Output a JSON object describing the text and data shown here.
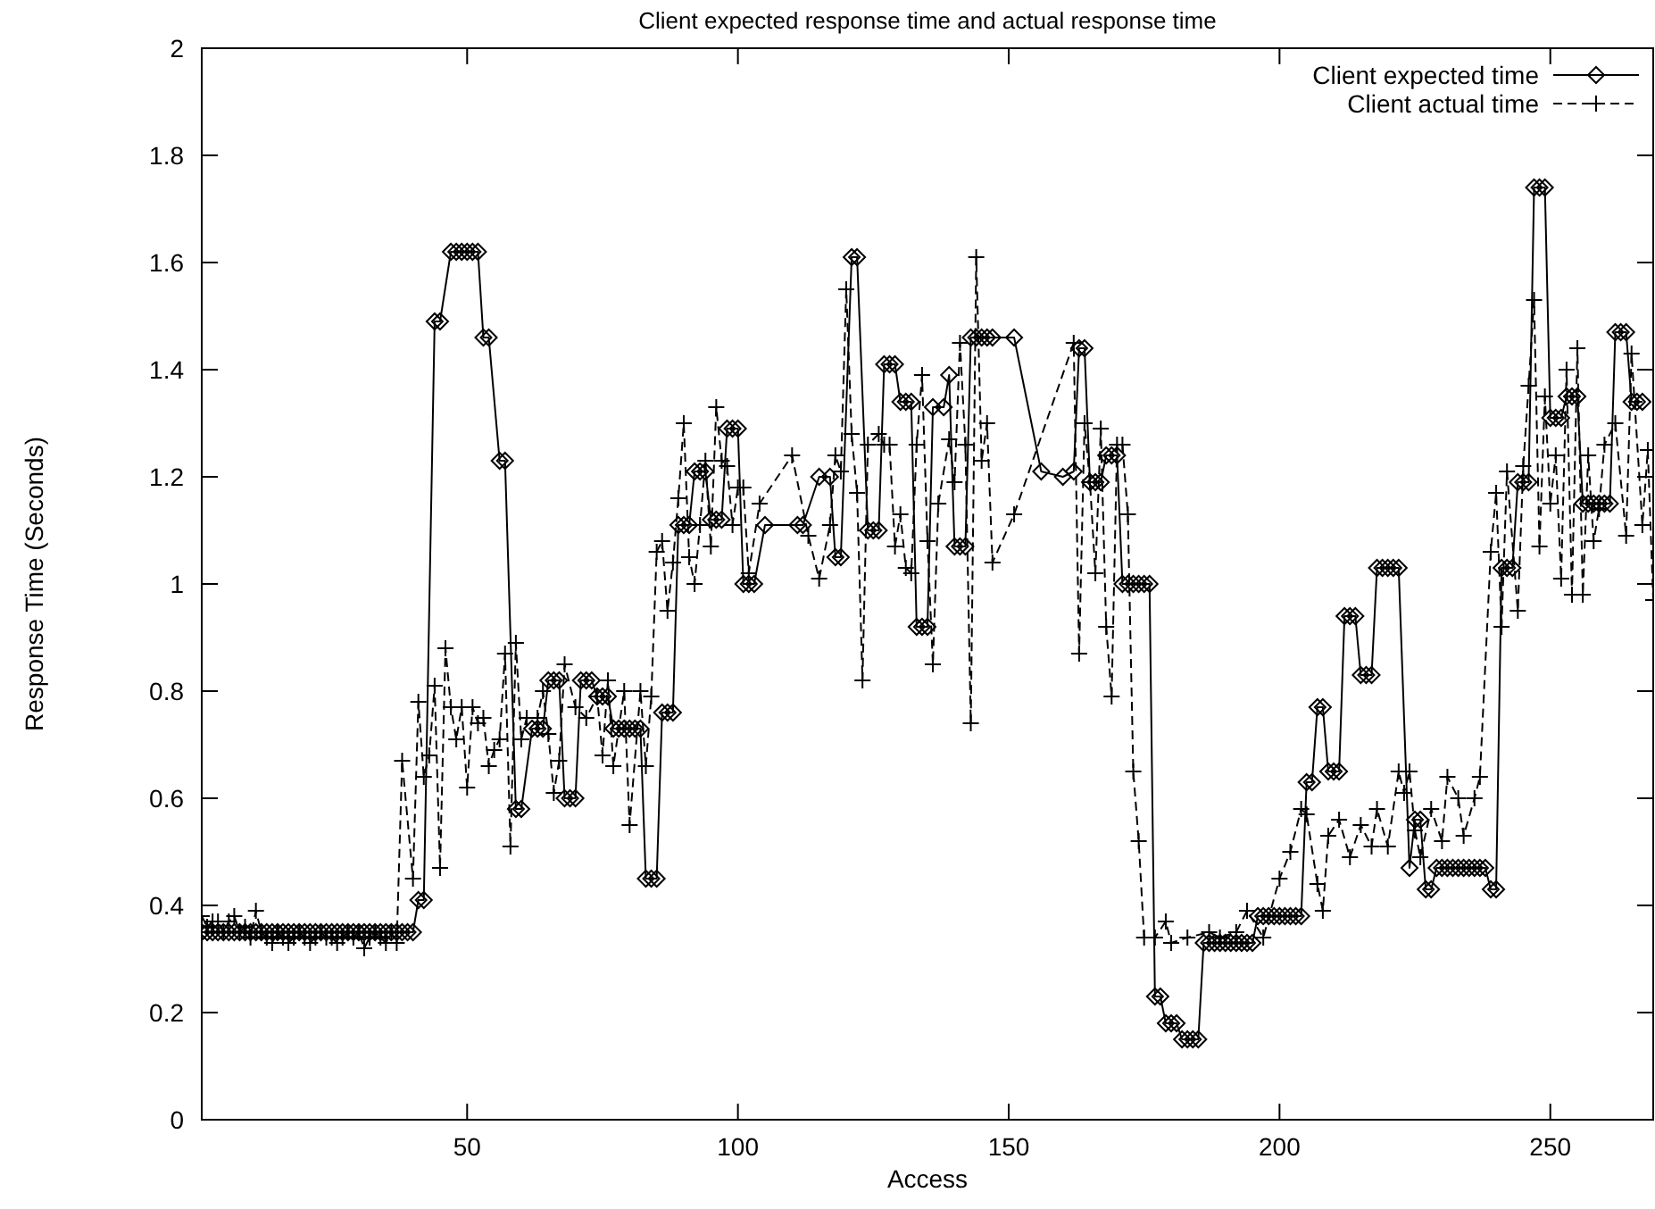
{
  "chart_data": {
    "type": "line",
    "title": "Client expected response time and actual response time",
    "xlabel": "Access",
    "ylabel": "Response Time (Seconds)",
    "xlim": [
      1,
      269
    ],
    "ylim": [
      0,
      2
    ],
    "xticks": [
      50,
      100,
      150,
      200,
      250
    ],
    "yticks": [
      0,
      0.2,
      0.4,
      0.6,
      0.8,
      1,
      1.2,
      1.4,
      1.6,
      1.8,
      2
    ],
    "grid": false,
    "legend": "top right",
    "series": [
      {
        "name": "Client expected time",
        "color": "#000000",
        "marker": "diamond",
        "line_style": "solid",
        "x": [
          1,
          2,
          3,
          4,
          5,
          6,
          7,
          8,
          9,
          10,
          11,
          12,
          13,
          14,
          15,
          16,
          17,
          18,
          19,
          20,
          21,
          22,
          23,
          24,
          25,
          26,
          27,
          28,
          29,
          30,
          31,
          32,
          33,
          34,
          35,
          36,
          37,
          38,
          39,
          40,
          41,
          42,
          44,
          45,
          47,
          48,
          49,
          50,
          51,
          52,
          53,
          54,
          56,
          57,
          59,
          60,
          62,
          63,
          64,
          65,
          66,
          67,
          68,
          69,
          70,
          71,
          72,
          73,
          74,
          75,
          76,
          77,
          78,
          79,
          80,
          81,
          82,
          83,
          84,
          85,
          86,
          87,
          88,
          89,
          90,
          91,
          92,
          93,
          94,
          95,
          96,
          97,
          98,
          99,
          100,
          101,
          102,
          103,
          105,
          111,
          112,
          115,
          117,
          118,
          119,
          121,
          122,
          124,
          125,
          126,
          127,
          128,
          129,
          130,
          131,
          132,
          133,
          134,
          135,
          136,
          138,
          139,
          140,
          141,
          142,
          143,
          144,
          145,
          146,
          147,
          151,
          156,
          160,
          162,
          163,
          164,
          165,
          166,
          167,
          168,
          169,
          170,
          171,
          172,
          173,
          174,
          175,
          176,
          177,
          178,
          179,
          180,
          181,
          182,
          183,
          184,
          185,
          186,
          187,
          188,
          189,
          190,
          191,
          192,
          193,
          194,
          195,
          196,
          197,
          198,
          199,
          200,
          201,
          202,
          203,
          204,
          205,
          206,
          207,
          208,
          209,
          210,
          211,
          212,
          213,
          214,
          215,
          216,
          217,
          218,
          219,
          220,
          221,
          222,
          224,
          225,
          226,
          227,
          228,
          229,
          230,
          231,
          232,
          233,
          234,
          235,
          236,
          237,
          238,
          239,
          240,
          241,
          242,
          243,
          244,
          245,
          246,
          247,
          248,
          249,
          250,
          251,
          252,
          253,
          254,
          255,
          256,
          257,
          258,
          259,
          260,
          261,
          262,
          263,
          264,
          265,
          266,
          267
        ],
        "values": [
          0.35,
          0.35,
          0.35,
          0.35,
          0.35,
          0.35,
          0.35,
          0.35,
          0.35,
          0.35,
          0.35,
          0.35,
          0.35,
          0.35,
          0.35,
          0.35,
          0.35,
          0.35,
          0.35,
          0.35,
          0.35,
          0.35,
          0.35,
          0.35,
          0.35,
          0.35,
          0.35,
          0.35,
          0.35,
          0.35,
          0.35,
          0.35,
          0.35,
          0.35,
          0.35,
          0.35,
          0.35,
          0.35,
          0.35,
          0.35,
          0.41,
          0.41,
          1.49,
          1.49,
          1.62,
          1.62,
          1.62,
          1.62,
          1.62,
          1.62,
          1.46,
          1.46,
          1.23,
          1.23,
          0.58,
          0.58,
          0.73,
          0.73,
          0.73,
          0.82,
          0.82,
          0.82,
          0.6,
          0.6,
          0.6,
          0.82,
          0.82,
          0.82,
          0.79,
          0.79,
          0.79,
          0.73,
          0.73,
          0.73,
          0.73,
          0.73,
          0.73,
          0.45,
          0.45,
          0.45,
          0.76,
          0.76,
          0.76,
          1.11,
          1.11,
          1.11,
          1.21,
          1.21,
          1.21,
          1.12,
          1.12,
          1.12,
          1.29,
          1.29,
          1.29,
          1,
          1,
          1,
          1.11,
          1.11,
          1.11,
          1.2,
          1.2,
          1.05,
          1.05,
          1.61,
          1.61,
          1.1,
          1.1,
          1.1,
          1.41,
          1.41,
          1.41,
          1.34,
          1.34,
          1.34,
          0.92,
          0.92,
          0.92,
          1.33,
          1.33,
          1.39,
          1.07,
          1.07,
          1.07,
          1.46,
          1.46,
          1.46,
          1.46,
          1.46,
          1.46,
          1.21,
          1.2,
          1.21,
          1.44,
          1.44,
          1.19,
          1.19,
          1.19,
          1.24,
          1.24,
          1.24,
          1,
          1,
          1,
          1,
          1,
          1,
          0.23,
          0.23,
          0.18,
          0.18,
          0.18,
          0.15,
          0.15,
          0.15,
          0.15,
          0.33,
          0.33,
          0.33,
          0.33,
          0.33,
          0.33,
          0.33,
          0.33,
          0.33,
          0.33,
          0.38,
          0.38,
          0.38,
          0.38,
          0.38,
          0.38,
          0.38,
          0.38,
          0.38,
          0.63,
          0.63,
          0.77,
          0.77,
          0.65,
          0.65,
          0.65,
          0.94,
          0.94,
          0.94,
          0.83,
          0.83,
          0.83,
          1.03,
          1.03,
          1.03,
          1.03,
          1.03,
          0.47,
          0.56,
          0.56,
          0.43,
          0.43,
          0.47,
          0.47,
          0.47,
          0.47,
          0.47,
          0.47,
          0.47,
          0.47,
          0.47,
          0.47,
          0.43,
          0.43,
          1.03,
          1.03,
          1.03,
          1.19,
          1.19,
          1.19,
          1.74,
          1.74,
          1.74,
          1.31,
          1.31,
          1.31,
          1.35,
          1.35,
          1.35,
          1.15,
          1.15,
          1.15,
          1.15,
          1.15,
          1.15,
          1.47,
          1.47,
          1.47,
          1.34,
          1.34,
          1.34
        ]
      },
      {
        "name": "Client actual time",
        "color": "#000000",
        "marker": "cross",
        "line_style": "dashed",
        "x": [
          1,
          2,
          3,
          4,
          5,
          6,
          7,
          8,
          9,
          10,
          11,
          12,
          13,
          14,
          15,
          16,
          17,
          18,
          19,
          20,
          21,
          22,
          23,
          24,
          25,
          26,
          27,
          28,
          29,
          30,
          31,
          32,
          33,
          34,
          35,
          36,
          37,
          38,
          40,
          41,
          42,
          43,
          44,
          45,
          46,
          47,
          48,
          49,
          50,
          51,
          52,
          53,
          54,
          55,
          56,
          57,
          58,
          59,
          60,
          61,
          63,
          64,
          65,
          66,
          67,
          68,
          70,
          72,
          74,
          75,
          76,
          77,
          79,
          80,
          82,
          83,
          84,
          85,
          86,
          87,
          88,
          89,
          90,
          91,
          92,
          93,
          94,
          95,
          96,
          97,
          98,
          99,
          100,
          101,
          102,
          104,
          110,
          113,
          115,
          117,
          118,
          119,
          120,
          121,
          122,
          123,
          124,
          126,
          127,
          128,
          129,
          130,
          131,
          132,
          133,
          134,
          135,
          136,
          137,
          139,
          140,
          141,
          142,
          143,
          144,
          145,
          146,
          147,
          151,
          162,
          163,
          164,
          165,
          166,
          167,
          168,
          169,
          170,
          171,
          172,
          173,
          174,
          175,
          177,
          179,
          180,
          183,
          187,
          189,
          192,
          194,
          197,
          200,
          202,
          204,
          205,
          207,
          208,
          209,
          211,
          213,
          215,
          217,
          218,
          220,
          222,
          223,
          224,
          225,
          226,
          228,
          230,
          231,
          233,
          234,
          236,
          237,
          239,
          240,
          241,
          242,
          244,
          245,
          246,
          247,
          248,
          249,
          250,
          251,
          252,
          253,
          254,
          255,
          256,
          257,
          258,
          259,
          260,
          262,
          264,
          265,
          267,
          268,
          269
        ],
        "values": [
          0.38,
          0.36,
          0.37,
          0.37,
          0.35,
          0.37,
          0.38,
          0.35,
          0.36,
          0.34,
          0.39,
          0.35,
          0.34,
          0.33,
          0.35,
          0.34,
          0.33,
          0.34,
          0.35,
          0.34,
          0.33,
          0.34,
          0.35,
          0.34,
          0.34,
          0.33,
          0.34,
          0.35,
          0.34,
          0.35,
          0.32,
          0.34,
          0.35,
          0.34,
          0.33,
          0.35,
          0.33,
          0.67,
          0.45,
          0.78,
          0.64,
          0.68,
          0.81,
          0.47,
          0.88,
          0.77,
          0.71,
          0.77,
          0.62,
          0.77,
          0.74,
          0.75,
          0.66,
          0.69,
          0.71,
          0.87,
          0.51,
          0.89,
          0.71,
          0.75,
          0.75,
          0.8,
          0.72,
          0.61,
          0.67,
          0.85,
          0.77,
          0.75,
          0.79,
          0.68,
          0.82,
          0.66,
          0.8,
          0.55,
          0.8,
          0.66,
          0.79,
          1.06,
          1.08,
          0.95,
          1.04,
          1.16,
          1.3,
          1.05,
          1,
          1.11,
          1.23,
          1.07,
          1.33,
          1.23,
          1.22,
          1.11,
          1.18,
          1.18,
          1.02,
          1.15,
          1.24,
          1.09,
          1.01,
          1.11,
          1.24,
          1.21,
          1.55,
          1.28,
          1.17,
          0.82,
          1.26,
          1.28,
          1.26,
          1.26,
          1.07,
          1.13,
          1.03,
          1.02,
          1.26,
          1.39,
          1.08,
          0.85,
          1.15,
          1.27,
          1.19,
          1.45,
          1.26,
          0.74,
          1.61,
          1.23,
          1.3,
          1.04,
          1.13,
          1.45,
          0.87,
          1.3,
          1.19,
          1.02,
          1.29,
          0.92,
          0.79,
          1.26,
          1.26,
          1.13,
          0.65,
          0.52,
          0.34,
          0.34,
          0.37,
          0.33,
          0.34,
          0.35,
          0.34,
          0.35,
          0.39,
          0.34,
          0.45,
          0.5,
          0.58,
          0.57,
          0.44,
          0.39,
          0.53,
          0.56,
          0.49,
          0.55,
          0.51,
          0.58,
          0.51,
          0.65,
          0.61,
          0.65,
          0.54,
          0.49,
          0.58,
          0.52,
          0.64,
          0.6,
          0.53,
          0.6,
          0.64,
          1.06,
          1.17,
          0.92,
          1.21,
          0.95,
          1.22,
          1.37,
          1.53,
          1.07,
          1.35,
          1.15,
          1.24,
          1.01,
          1.4,
          0.98,
          1.44,
          0.98,
          1.24,
          1.08,
          1.14,
          1.26,
          1.3,
          1.09,
          1.43,
          1.11,
          1.25,
          0.97
        ]
      }
    ]
  }
}
